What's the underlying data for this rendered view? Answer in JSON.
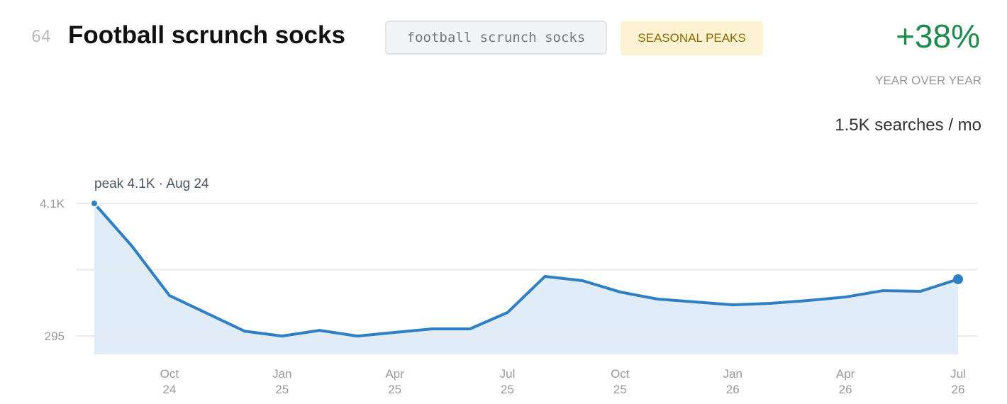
{
  "header": {
    "rank": "64",
    "title": "Football scrunch socks",
    "keyword": "football scrunch socks",
    "badge": "SEASONAL PEAKS",
    "growth": "+38%",
    "growth_label": "YEAR OVER YEAR",
    "volume": "1.5K searches / mo"
  },
  "chart_data": {
    "type": "line",
    "log_scale": true,
    "grid": true,
    "annotation": "peak 4.1K · Aug 24",
    "categories": [
      null,
      null,
      {
        "month": "Oct",
        "year": "24"
      },
      null,
      null,
      {
        "month": "Jan",
        "year": "25"
      },
      null,
      null,
      {
        "month": "Apr",
        "year": "25"
      },
      null,
      null,
      {
        "month": "Jul",
        "year": "25"
      },
      null,
      null,
      {
        "month": "Oct",
        "year": "25"
      },
      null,
      null,
      {
        "month": "Jan",
        "year": "26"
      },
      null,
      null,
      {
        "month": "Apr",
        "year": "26"
      },
      null,
      null,
      {
        "month": "Jul",
        "year": "26"
      }
    ],
    "series": [
      {
        "color": "#2f7fc6",
        "area_color": "#e0ecf7",
        "values": [
          4100,
          1760,
          659,
          463,
          325,
          295,
          330,
          295,
          317,
          340,
          340,
          470,
          963,
          885,
          707,
          614,
          580,
          548,
          564,
          597,
          640,
          726,
          717,
          911
        ]
      }
    ],
    "ylim": [
      205,
      4100
    ],
    "yticks": [
      295,
      {
        "value": 1100,
        "label": null
      },
      {
        "value": 4100,
        "label": "4.1K"
      }
    ]
  }
}
